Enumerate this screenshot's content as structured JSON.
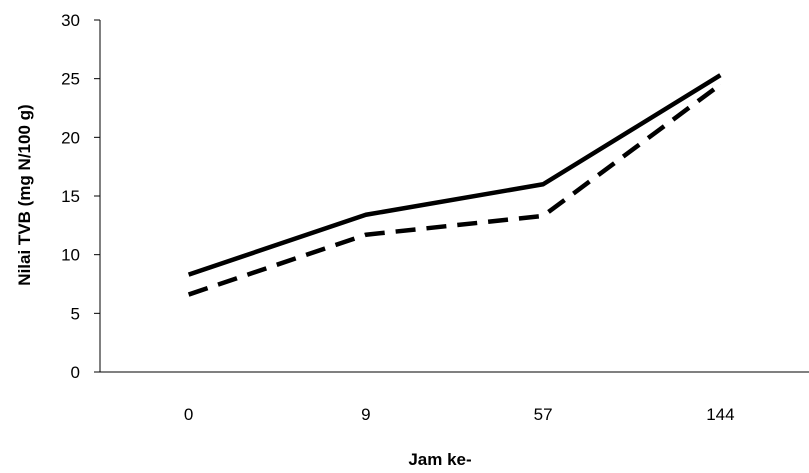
{
  "chart_data": {
    "type": "line",
    "categories": [
      "0",
      "9",
      "57",
      "144"
    ],
    "series": [
      {
        "values": [
          8.3,
          13.4,
          16.0,
          25.3
        ],
        "line_style": "solid",
        "color": "#000000"
      },
      {
        "values": [
          6.6,
          11.7,
          13.3,
          24.5
        ],
        "line_style": "dashed",
        "color": "#000000"
      }
    ],
    "xlabel": "Jam ke-",
    "ylabel": "Nilai TVB (mg N/100 g)",
    "ylim": [
      0,
      30
    ],
    "yticks": [
      "0",
      "5",
      "10",
      "15",
      "20",
      "25",
      "30"
    ],
    "grid": false,
    "legend": "none"
  }
}
